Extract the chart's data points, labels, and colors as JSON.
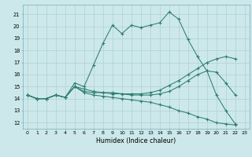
{
  "title": "",
  "xlabel": "Humidex (Indice chaleur)",
  "ylabel": "",
  "background_color": "#cce8ea",
  "grid_color": "#b0d0d4",
  "line_color": "#2e7d6e",
  "xlim": [
    -0.5,
    23.5
  ],
  "ylim": [
    11.5,
    21.8
  ],
  "xticks": [
    0,
    1,
    2,
    3,
    4,
    5,
    6,
    7,
    8,
    9,
    10,
    11,
    12,
    13,
    14,
    15,
    16,
    17,
    18,
    19,
    20,
    21,
    22,
    23
  ],
  "yticks": [
    12,
    13,
    14,
    15,
    16,
    17,
    18,
    19,
    20,
    21
  ],
  "series": [
    {
      "x": [
        0,
        1,
        2,
        3,
        4,
        5,
        6,
        7,
        8,
        9,
        10,
        11,
        12,
        13,
        14,
        15,
        16,
        17,
        18,
        19,
        20,
        21,
        22
      ],
      "y": [
        14.3,
        14.0,
        14.0,
        14.3,
        14.1,
        15.3,
        15.0,
        16.8,
        18.6,
        20.1,
        19.4,
        20.1,
        19.9,
        20.1,
        20.3,
        21.2,
        20.6,
        18.9,
        17.5,
        16.3,
        14.3,
        13.0,
        11.9
      ]
    },
    {
      "x": [
        0,
        1,
        2,
        3,
        4,
        5,
        6,
        7,
        8,
        9,
        10,
        11,
        12,
        13,
        14,
        15,
        16,
        17,
        18,
        19,
        20,
        21,
        22
      ],
      "y": [
        14.3,
        14.0,
        14.0,
        14.3,
        14.1,
        15.0,
        14.8,
        14.6,
        14.5,
        14.4,
        14.4,
        14.4,
        14.4,
        14.5,
        14.7,
        15.1,
        15.5,
        16.0,
        16.5,
        17.0,
        17.3,
        17.5,
        17.3
      ]
    },
    {
      "x": [
        0,
        1,
        2,
        3,
        4,
        5,
        6,
        7,
        8,
        9,
        10,
        11,
        12,
        13,
        14,
        15,
        16,
        17,
        18,
        19,
        20,
        21,
        22
      ],
      "y": [
        14.3,
        14.0,
        14.0,
        14.3,
        14.1,
        15.0,
        14.6,
        14.5,
        14.5,
        14.5,
        14.4,
        14.3,
        14.3,
        14.3,
        14.4,
        14.6,
        15.0,
        15.5,
        16.0,
        16.3,
        16.2,
        15.3,
        14.3
      ]
    },
    {
      "x": [
        0,
        1,
        2,
        3,
        4,
        5,
        6,
        7,
        8,
        9,
        10,
        11,
        12,
        13,
        14,
        15,
        16,
        17,
        18,
        19,
        20,
        21,
        22
      ],
      "y": [
        14.3,
        14.0,
        14.0,
        14.3,
        14.1,
        15.0,
        14.5,
        14.3,
        14.2,
        14.1,
        14.0,
        13.9,
        13.8,
        13.7,
        13.5,
        13.3,
        13.0,
        12.8,
        12.5,
        12.3,
        12.0,
        11.9,
        11.8
      ]
    }
  ]
}
